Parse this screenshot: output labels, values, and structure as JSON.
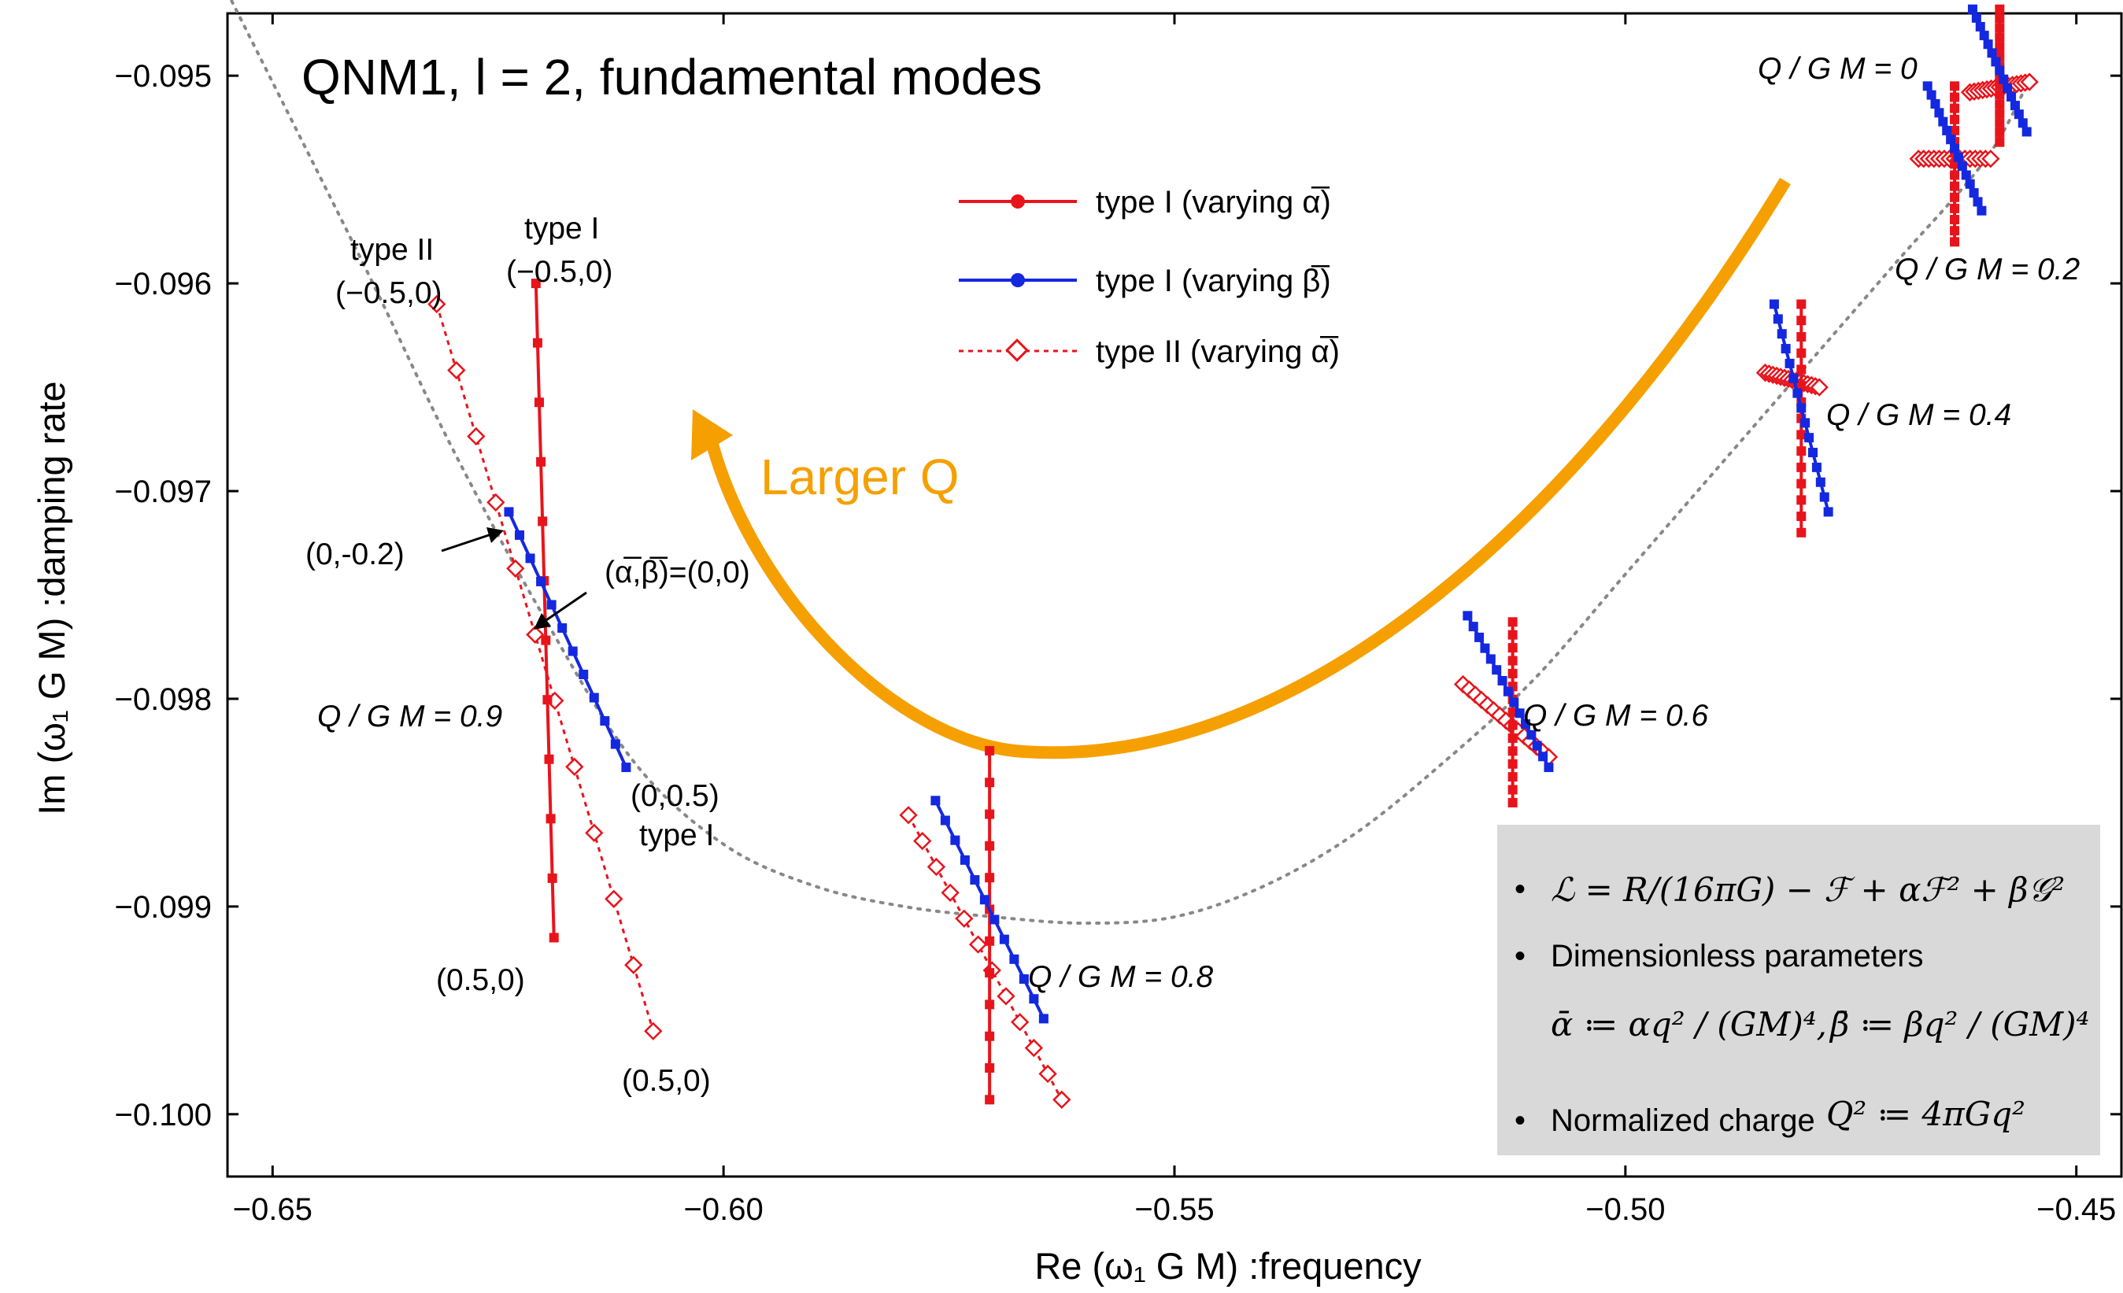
{
  "chart_data": {
    "type": "line",
    "title": "QNM1, l = 2, fundamental modes",
    "xlabel": "Re (ω₁ G M) :frequency",
    "ylabel": "Im (ω₁ G M) :damping rate",
    "xlim": [
      -0.655,
      -0.445
    ],
    "ylim": [
      -0.1003,
      -0.0947
    ],
    "xticks": [
      -0.65,
      -0.6,
      -0.55,
      -0.5,
      -0.45
    ],
    "xtick_labels": [
      "−0.65",
      "−0.60",
      "−0.55",
      "−0.50",
      "−0.45"
    ],
    "yticks": [
      -0.095,
      -0.096,
      -0.097,
      -0.098,
      -0.099,
      -0.1
    ],
    "ytick_labels": [
      "−0.095",
      "−0.096",
      "−0.097",
      "−0.098",
      "−0.099",
      "−0.100"
    ],
    "grid": false,
    "legend_position": "top-center",
    "legend": [
      {
        "label": "type I (varying α̅)",
        "color": "#e8141c",
        "style": "solid",
        "marker": "circle"
      },
      {
        "label": "type I (varying β̅)",
        "color": "#1428e0",
        "style": "solid",
        "marker": "circle"
      },
      {
        "label": "type II (varying α̅)",
        "color": "#e8141c",
        "style": "dotted",
        "marker": "diamond"
      }
    ],
    "background_curve": {
      "style": "dotted",
      "color": "#888888",
      "x": [
        -0.655,
        -0.64,
        -0.63,
        -0.62,
        -0.61,
        -0.6,
        -0.59,
        -0.58,
        -0.57,
        -0.56,
        -0.55,
        -0.54,
        -0.53,
        -0.52,
        -0.51,
        -0.5,
        -0.49,
        -0.48,
        -0.47,
        -0.46,
        -0.455
      ],
      "y": [
        -0.0946,
        -0.0959,
        -0.0968,
        -0.0976,
        -0.0983,
        -0.0987,
        -0.0989,
        -0.099,
        -0.09905,
        -0.09908,
        -0.09905,
        -0.0989,
        -0.09865,
        -0.0983,
        -0.0979,
        -0.0974,
        -0.0969,
        -0.0964,
        -0.0959,
        -0.0954,
        -0.095
      ]
    },
    "modes": [
      {
        "label": "Q / G M = 0",
        "center": [
          -0.4585,
          -0.095
        ],
        "type1_alpha": {
          "start": [
            -0.4585,
            -0.09468
          ],
          "end": [
            -0.4585,
            -0.09532
          ]
        },
        "type1_beta": {
          "start": [
            -0.4615,
            -0.09468
          ],
          "end": [
            -0.4555,
            -0.09527
          ]
        },
        "type2_alpha": {
          "start": [
            -0.4618,
            -0.09508
          ],
          "end": [
            -0.4552,
            -0.09503
          ]
        }
      },
      {
        "label": "Q / G M = 0.2",
        "center": [
          -0.4635,
          -0.09535
        ],
        "type1_beta": {
          "start": [
            -0.4665,
            -0.09505
          ],
          "end": [
            -0.4605,
            -0.09565
          ]
        },
        "type1_alpha": {
          "start": [
            -0.4635,
            -0.09505
          ],
          "end": [
            -0.4635,
            -0.0958
          ]
        },
        "type2_alpha": {
          "start": [
            -0.4675,
            -0.0954
          ],
          "end": [
            -0.4595,
            -0.0954
          ]
        }
      },
      {
        "label": "Q / G M = 0.4",
        "center": [
          -0.4805,
          -0.09645
        ],
        "type1_beta": {
          "start": [
            -0.4835,
            -0.0961
          ],
          "end": [
            -0.4775,
            -0.0971
          ]
        },
        "type1_alpha": {
          "start": [
            -0.4805,
            -0.0961
          ],
          "end": [
            -0.4805,
            -0.0972
          ]
        },
        "type2_alpha": {
          "start": [
            -0.4845,
            -0.09643
          ],
          "end": [
            -0.4785,
            -0.0965
          ]
        }
      },
      {
        "label": "Q / G M = 0.6",
        "center": [
          -0.5125,
          -0.098
        ],
        "type1_beta": {
          "start": [
            -0.5175,
            -0.0976
          ],
          "end": [
            -0.5085,
            -0.09833
          ]
        },
        "type1_alpha": {
          "start": [
            -0.5125,
            -0.09763
          ],
          "end": [
            -0.5125,
            -0.0985
          ]
        },
        "type2_alpha": {
          "start": [
            -0.518,
            -0.09793
          ],
          "end": [
            -0.5085,
            -0.09828
          ]
        }
      },
      {
        "label": "Q / G M = 0.8",
        "center": [
          -0.5705,
          -0.09907
        ],
        "type1_beta": {
          "start": [
            -0.5765,
            -0.09849
          ],
          "end": [
            -0.5645,
            -0.09954
          ]
        },
        "type1_alpha": {
          "start": [
            -0.5705,
            -0.09825
          ],
          "end": [
            -0.5705,
            -0.09993
          ]
        },
        "type2_alpha": {
          "start": [
            -0.5795,
            -0.09856
          ],
          "end": [
            -0.5625,
            -0.09993
          ]
        }
      },
      {
        "label": "Q / G M = 0.9",
        "center": [
          -0.6198,
          -0.09761
        ],
        "type1_alpha": {
          "start": [
            -0.6208,
            -0.096
          ],
          "end": [
            -0.6188,
            -0.09915
          ]
        },
        "type1_beta": {
          "start": [
            -0.6238,
            -0.0971
          ],
          "end": [
            -0.6108,
            -0.09833
          ]
        },
        "type2_alpha": {
          "start": [
            -0.6318,
            -0.0961
          ],
          "end": [
            -0.6078,
            -0.0996
          ]
        }
      }
    ],
    "annotations": {
      "type2_start": [
        "type II",
        "(−0.5,0)"
      ],
      "type1_start": [
        "type I",
        "(−0.5,0)"
      ],
      "point_0_m02": "(0,-0.2)",
      "origin": "(α̅,β̅)=(0,0)",
      "point_0_05": "(0,0.5)",
      "point_0_05_sub": "type I",
      "point_05_0_a": "(0.5,0)",
      "point_05_0_b": "(0.5,0)",
      "arrow_label": "Larger Q"
    }
  },
  "info_box": {
    "item1_math": "ℒ = R/(16πG) − ℱ + αℱ² + β𝒢²",
    "item2": "Dimensionless parameters",
    "item2_math_a": "ᾱ ≔ αq² / (GM)⁴,",
    "item2_math_b": "β̄ ≔ βq² / (GM)⁴",
    "item3": "Normalized charge",
    "item3_math": "Q² ≔ 4πGq²"
  },
  "colors": {
    "red": "#e8141c",
    "blue": "#1428e0",
    "orange": "#f5a000",
    "gray": "#888888",
    "box": "#d9d9d9"
  }
}
